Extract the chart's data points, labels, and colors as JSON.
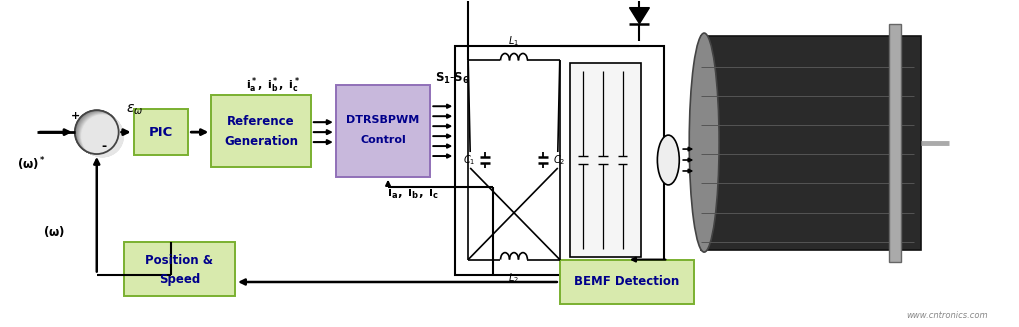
{
  "bg_color": "#ffffff",
  "fig_width": 10.2,
  "fig_height": 3.27,
  "dpi": 100,
  "block_green_face": "#d8eaad",
  "block_green_edge": "#7ab030",
  "block_purple_face": "#c8b8dc",
  "block_purple_edge": "#9070b8",
  "arrow_color": "#000000",
  "bold_blue": "#00008B",
  "watermark": "www.cntronics.com",
  "xlim": [
    0,
    10.2
  ],
  "ylim": [
    0,
    3.27
  ]
}
